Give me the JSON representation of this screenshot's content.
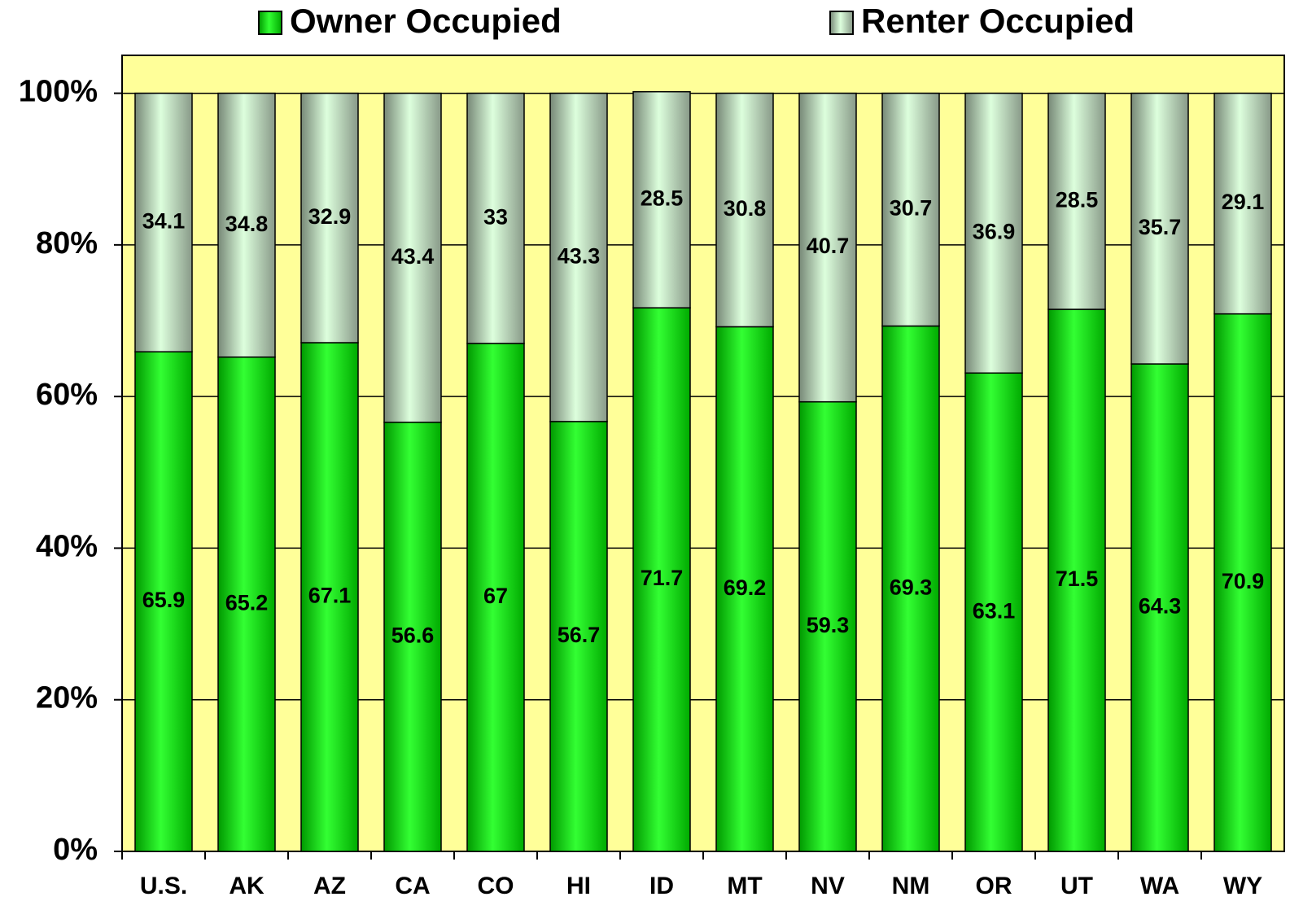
{
  "chart_data": {
    "type": "stacked_bar",
    "categories": [
      "U.S.",
      "AK",
      "AZ",
      "CA",
      "CO",
      "HI",
      "ID",
      "MT",
      "NV",
      "NM",
      "OR",
      "UT",
      "WA",
      "WY"
    ],
    "series": [
      {
        "name": "Owner Occupied",
        "color": "#00dd00",
        "values": [
          65.9,
          65.2,
          67.1,
          56.6,
          67,
          56.7,
          71.7,
          69.2,
          59.3,
          69.3,
          63.1,
          71.5,
          64.3,
          70.9
        ]
      },
      {
        "name": "Renter Occupied",
        "color": "#ccffcc",
        "values": [
          34.1,
          34.8,
          32.9,
          43.4,
          33,
          43.3,
          28.5,
          30.8,
          40.7,
          30.7,
          36.9,
          28.5,
          35.7,
          29.1
        ]
      }
    ],
    "ylim": [
      0,
      105
    ],
    "yticks": [
      {
        "value": 0,
        "label": "0%"
      },
      {
        "value": 20,
        "label": "20%"
      },
      {
        "value": 40,
        "label": "40%"
      },
      {
        "value": 60,
        "label": "60%"
      },
      {
        "value": 80,
        "label": "80%"
      },
      {
        "value": 100,
        "label": "100%"
      }
    ],
    "grid": true,
    "background": "#ffff99"
  }
}
